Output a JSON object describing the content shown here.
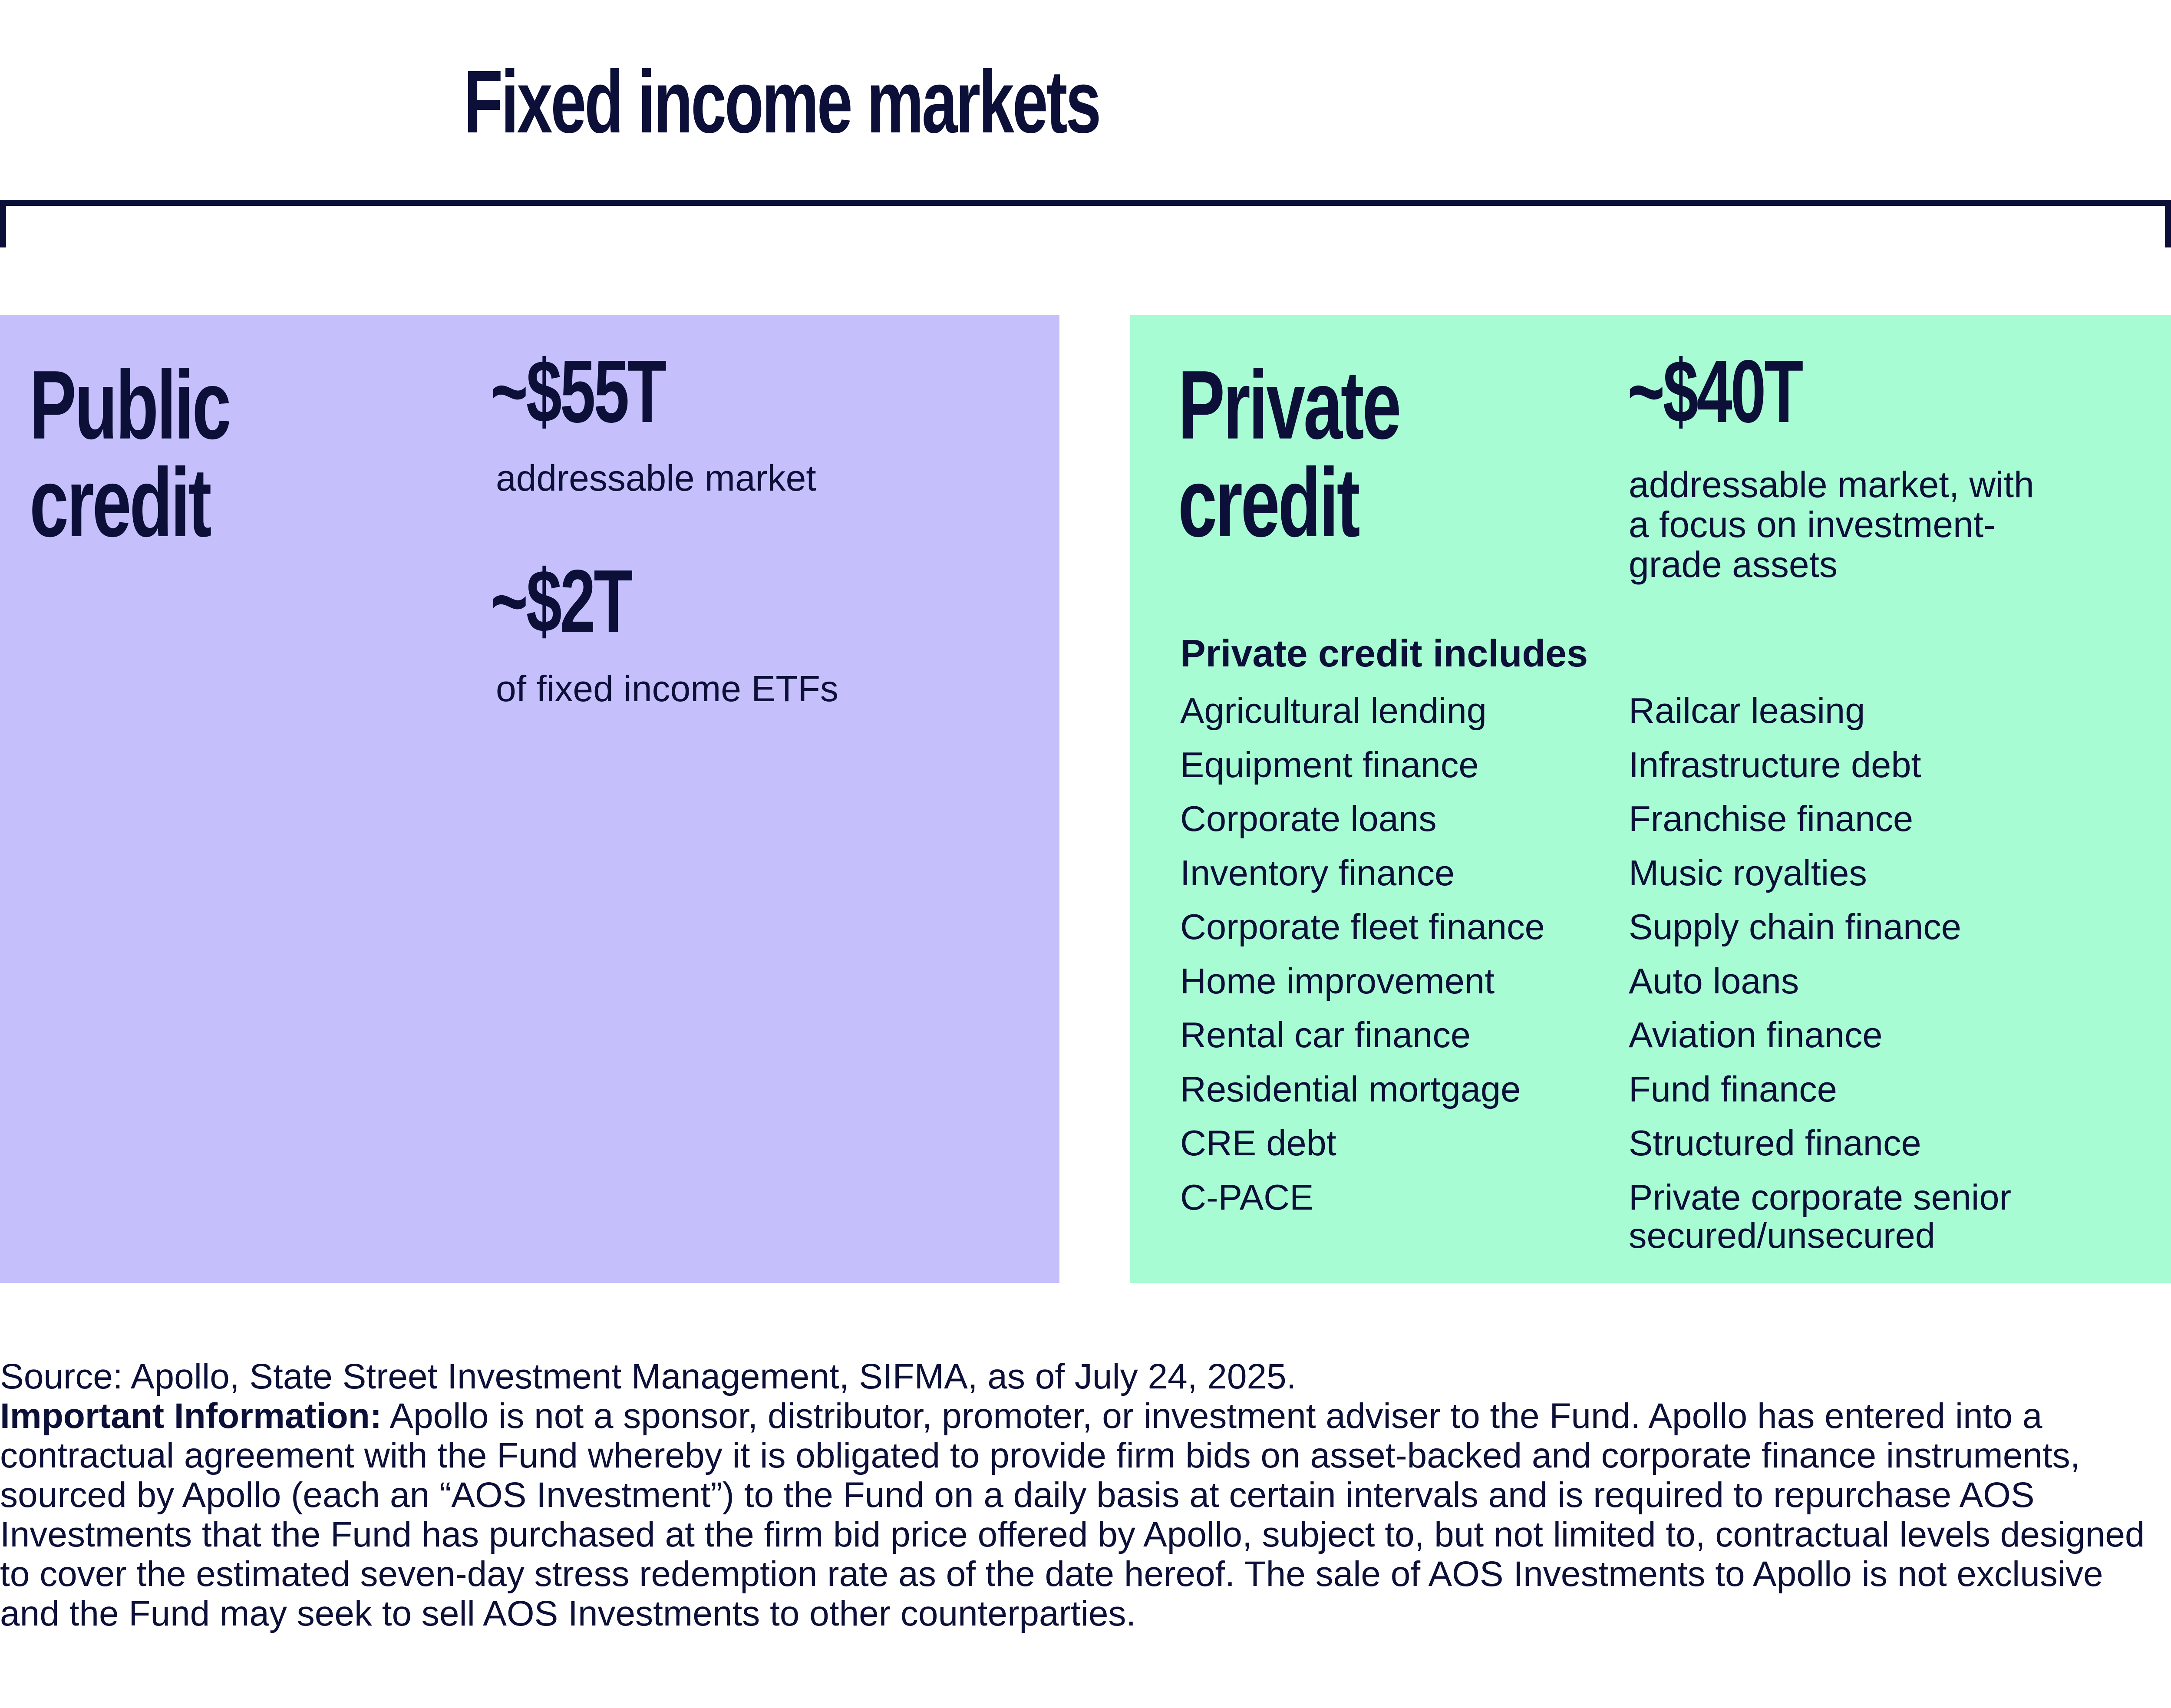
{
  "title": "Fixed income markets",
  "public": {
    "title_line1": "Public",
    "title_line2": "credit",
    "stat1_value": "~$55T",
    "stat1_label": "addressable market",
    "stat2_value": "~$2T",
    "stat2_label": "of fixed income ETFs",
    "color": "#c5c0fc"
  },
  "private": {
    "title_line1": "Private",
    "title_line2": "credit",
    "stat_value": "~$40T",
    "stat_label_lines": [
      "addressable market, with",
      "a focus on investment-",
      "grade assets"
    ],
    "includes_heading": "Private credit includes",
    "left_items": [
      "Agricultural lending",
      "Equipment finance",
      "Corporate loans",
      "Inventory finance",
      "Corporate fleet finance",
      "Home improvement",
      "Rental car finance",
      "Residential mortgage",
      "CRE debt",
      "C-PACE"
    ],
    "right_items": [
      "Railcar leasing",
      "Infrastructure debt",
      "Franchise finance",
      "Music royalties",
      "Supply chain finance",
      "Auto loans",
      "Aviation finance",
      "Fund finance",
      "Structured finance",
      "Private corporate senior secured/unsecured"
    ],
    "color": "#a8fcd3"
  },
  "footer": {
    "source": "Source: Apollo, State Street Investment Management, SIFMA, as of July 24, 2025.",
    "important_label": "Important Information:",
    "important_text": "Apollo is not a sponsor, distributor, promoter, or investment adviser to the Fund. Apollo has entered into a contractual agreement with the Fund whereby it is obligated to provide firm bids on asset-backed and corporate finance instruments, sourced by Apollo (each an “AOS Investment”) to the Fund on a daily basis at certain intervals and is required to repurchase AOS Investments that the Fund has purchased at the firm bid price offered by Apollo, subject to, but not limited to, contractual levels designed to cover the estimated seven-day stress redemption rate as of the date hereof. The sale of AOS Investments to Apollo is not exclusive and the Fund may seek to sell AOS Investments to other counterparties."
  }
}
